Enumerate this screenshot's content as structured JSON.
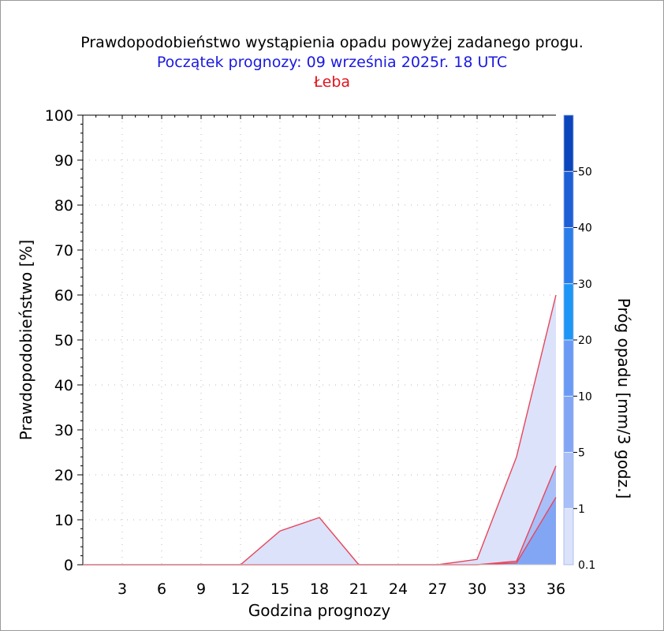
{
  "titles": {
    "main": "Prawdopodobieństwo wystąpienia opadu powyżej zadanego progu.",
    "start": "Początek prognozy: 09 września 2025r. 18 UTC",
    "location": "Łeba"
  },
  "chart_data": {
    "type": "area",
    "xlabel": "Godzina prognozy",
    "ylabel": "Prawdopodobieństwo [%]",
    "xlim": [
      0,
      36
    ],
    "ylim": [
      0,
      100
    ],
    "x_ticks": [
      3,
      6,
      9,
      12,
      15,
      18,
      21,
      24,
      27,
      30,
      33,
      36
    ],
    "y_ticks": [
      0,
      10,
      20,
      30,
      40,
      50,
      60,
      70,
      80,
      90,
      100
    ],
    "grid": true,
    "x": [
      0,
      3,
      6,
      9,
      12,
      15,
      18,
      21,
      24,
      27,
      30,
      33,
      36
    ],
    "series": [
      {
        "threshold": 0.1,
        "values": [
          0,
          0,
          0,
          0,
          0,
          7.5,
          10.5,
          0,
          0,
          0,
          1.2,
          24,
          60
        ],
        "color": "#dbe2fa"
      },
      {
        "threshold": 1,
        "values": [
          0,
          0,
          0,
          0,
          0,
          0,
          0,
          0,
          0,
          0,
          0,
          0.8,
          22
        ],
        "color": "#a9bff7"
      },
      {
        "threshold": 5,
        "values": [
          0,
          0,
          0,
          0,
          0,
          0,
          0,
          0,
          0,
          0,
          0,
          0.4,
          15
        ],
        "color": "#82a6f4"
      }
    ],
    "series_line_color": "#e8455a",
    "colorbar": {
      "label": "Próg opadu [mm/3 godz.]",
      "labels": [
        "0.1",
        "1",
        "5",
        "10",
        "20",
        "30",
        "40",
        "50"
      ],
      "colors": [
        "#dbe2fa",
        "#a9bff7",
        "#82a6f4",
        "#6a9af4",
        "#1e96f5",
        "#2a7de9",
        "#1f5fd6",
        "#0b45bb"
      ]
    }
  }
}
